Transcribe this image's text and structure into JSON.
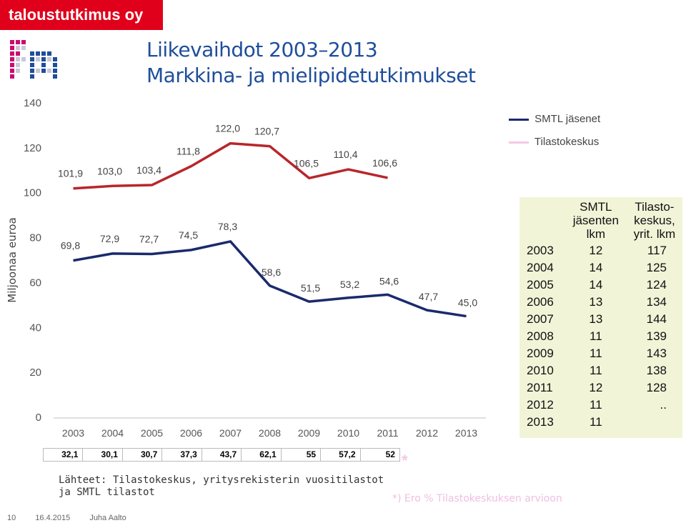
{
  "header": {
    "brand": "taloustutkimus oy"
  },
  "title": {
    "line1": "Liikevaihdot 2003–2013",
    "line2": "Markkina- ja mielipidetutkimukset"
  },
  "colors": {
    "smtl": "#1a2a6c",
    "tilastokeskus": "#b8262a",
    "brand": "#e0001b",
    "title": "#1f4e9a"
  },
  "chart_data": {
    "type": "line",
    "title": "Liikevaihdot 2003–2013",
    "ylabel": "Miljoonaa euroa",
    "xlabel": "",
    "ylim": [
      0,
      140
    ],
    "yticks": [
      0,
      20,
      40,
      60,
      80,
      100,
      120,
      140
    ],
    "grid": false,
    "legend_position": "top-right",
    "x": [
      "2003",
      "2004",
      "2005",
      "2006",
      "2007",
      "2008",
      "2009",
      "2010",
      "2011",
      "2012",
      "2013"
    ],
    "series": [
      {
        "name": "SMTL jäsenet",
        "values": [
          69.8,
          72.9,
          72.7,
          74.5,
          78.3,
          58.6,
          51.5,
          53.2,
          54.6,
          47.7,
          45.0
        ],
        "labels": [
          "69,8",
          "72,9",
          "72,7",
          "74,5",
          "78,3",
          "58,6",
          "51,5",
          "53,2",
          "54,6",
          "47,7",
          "45,0"
        ]
      },
      {
        "name": "Tilastokeskus",
        "values": [
          101.9,
          103.0,
          103.4,
          111.8,
          122.0,
          120.7,
          106.5,
          110.4,
          106.6,
          null,
          null
        ],
        "labels": [
          "101,9",
          "103,0",
          "103,4",
          "111,8",
          "122,0",
          "120,7",
          "106,5",
          "110,4",
          "106,6",
          "",
          ""
        ]
      }
    ]
  },
  "table": {
    "headers": {
      "year": "",
      "a_1": "SMTL",
      "a_2": "jäsenten",
      "a_3": "lkm",
      "b_1": "Tilasto-",
      "b_2": "keskus,",
      "b_3": "yrit. lkm"
    },
    "rows": [
      {
        "year": "2003",
        "a": "12",
        "b": "117"
      },
      {
        "year": "2004",
        "a": "14",
        "b": "125"
      },
      {
        "year": "2005",
        "a": "14",
        "b": "124"
      },
      {
        "year": "2006",
        "a": "13",
        "b": "134"
      },
      {
        "year": "2007",
        "a": "13",
        "b": "144"
      },
      {
        "year": "2008",
        "a": "11",
        "b": "139"
      },
      {
        "year": "2009",
        "a": "11",
        "b": "143"
      },
      {
        "year": "2010",
        "a": "11",
        "b": "138"
      },
      {
        "year": "2011",
        "a": "12",
        "b": "128"
      },
      {
        "year": "2012",
        "a": "11",
        "b": ".."
      },
      {
        "year": "2013",
        "a": "11",
        "b": ""
      }
    ]
  },
  "bottom_values": [
    "32,1",
    "30,1",
    "30,7",
    "37,3",
    "43,7",
    "62,1",
    "55",
    "57,2",
    "52"
  ],
  "bottom_star": "*",
  "sources": "Lähteet: Tilastokeskus, yritysrekisterin vuositilastot\nja SMTL tilastot",
  "note": "*) Ero % Tilastokeskuksen arvioon",
  "footer": {
    "page": "10",
    "date": "16.4.2015",
    "author": "Juha Aalto"
  }
}
